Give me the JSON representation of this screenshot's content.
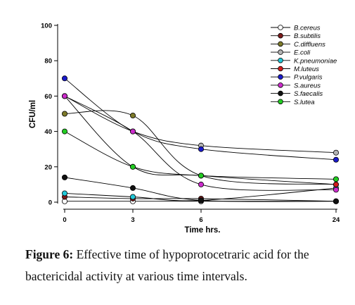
{
  "chart_data": {
    "type": "line",
    "xlabel": "Time hrs.",
    "ylabel": "CFU/ml",
    "xlim": [
      0,
      24
    ],
    "ylim": [
      0,
      100
    ],
    "x_ticks": [
      "0",
      "3",
      "6",
      "24"
    ],
    "x_tick_values": [
      0,
      3,
      6,
      24
    ],
    "y_ticks": [
      "0",
      "20",
      "40",
      "60",
      "80",
      "100"
    ],
    "grid": false,
    "legend_position": "top-right",
    "x": [
      0,
      3,
      6,
      24
    ],
    "series": [
      {
        "name": "B.cereus",
        "color": "#ffffff",
        "values": [
          0.5,
          0.5,
          0.5,
          0.5
        ]
      },
      {
        "name": "B.subtilis",
        "color": "#7a1a1a",
        "values": [
          3,
          2,
          2,
          0.5
        ]
      },
      {
        "name": "C.diffluens",
        "color": "#7d7a2a",
        "values": [
          50,
          49,
          15,
          10
        ]
      },
      {
        "name": "E.coli",
        "color": "#b4b4b4",
        "values": [
          60,
          40,
          32,
          28
        ]
      },
      {
        "name": "K.pneumoniae",
        "color": "#22c8d8",
        "values": [
          5,
          3,
          1,
          8
        ]
      },
      {
        "name": "M.luteus",
        "color": "#d01c1c",
        "values": [
          60,
          20,
          15,
          10
        ]
      },
      {
        "name": "P.vulgaris",
        "color": "#1a1acc",
        "values": [
          70,
          40,
          30,
          24
        ]
      },
      {
        "name": "S.aureus",
        "color": "#cc2ccc",
        "values": [
          60,
          40,
          10,
          7
        ]
      },
      {
        "name": "S.faecalis",
        "color": "#111111",
        "values": [
          14,
          8,
          1,
          0.5
        ]
      },
      {
        "name": "S.lutea",
        "color": "#22cc22",
        "values": [
          40,
          20,
          15,
          13
        ]
      }
    ]
  },
  "caption": {
    "label": "Figure 6:",
    "text": " Effective time of hypoprotocetraric acid for the bactericidal activity at various time intervals."
  }
}
